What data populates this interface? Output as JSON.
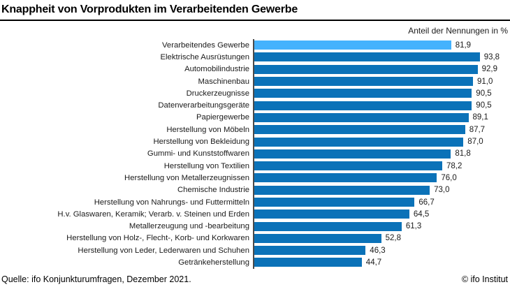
{
  "header": {
    "title": "Knappheit von Vorprodukten im Verarbeitenden Gewerbe",
    "unit_label": "Anteil der Nennungen in %"
  },
  "footer": {
    "source": "Quelle: ifo Konjunkturumfragen, Dezember 2021.",
    "credit": "© ifo Institut"
  },
  "colors": {
    "bar": "#0b72b8",
    "highlight_bar": "#44b2fd",
    "axis": "#4a4a4a",
    "text": "#1a1a1a"
  },
  "chart_data": {
    "type": "bar",
    "orientation": "horizontal",
    "title": "Knappheit von Vorprodukten im Verarbeitenden Gewerbe",
    "xlabel": "Anteil der Nennungen in %",
    "xlim": [
      0,
      100
    ],
    "grid": false,
    "legend": false,
    "highlight_index": 0,
    "categories": [
      "Verarbeitendes Gewerbe",
      "Elektrische Ausrüstungen",
      "Automobilindustrie",
      "Maschinenbau",
      "Druckerzeugnisse",
      "Datenverarbeitungsgeräte",
      "Papiergewerbe",
      "Herstellung von Möbeln",
      "Herstellung von Bekleidung",
      "Gummi- und Kunststoffwaren",
      "Herstellung von Textilien",
      "Herstellung von Metallerzeugnissen",
      "Chemische Industrie",
      "Herstellung von Nahrungs- und Futtermitteln",
      "H.v. Glaswaren, Keramik; Verarb. v. Steinen und Erden",
      "Metallerzeugung und -bearbeitung",
      "Herstellung von Holz-, Flecht-, Korb- und Korkwaren",
      "Herstellung von Leder, Lederwaren und Schuhen",
      "Getränkeherstellung"
    ],
    "values": [
      81.9,
      93.8,
      92.9,
      91.0,
      90.5,
      90.5,
      89.1,
      87.7,
      87.0,
      81.8,
      78.2,
      76.0,
      73.0,
      66.7,
      64.5,
      61.3,
      52.8,
      46.3,
      44.7
    ],
    "value_labels": [
      "81,9",
      "93,8",
      "92,9",
      "91,0",
      "90,5",
      "90,5",
      "89,1",
      "87,7",
      "87,0",
      "81,8",
      "78,2",
      "76,0",
      "73,0",
      "66,7",
      "64,5",
      "61,3",
      "52,8",
      "46,3",
      "44,7"
    ]
  }
}
